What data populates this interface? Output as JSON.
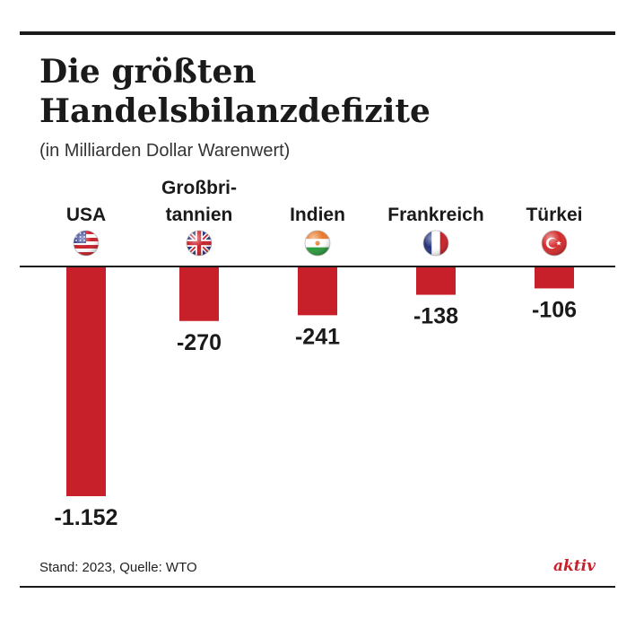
{
  "header": {
    "title": "Die größten Handelsbilanzdefizite",
    "subtitle": "(in Milliarden Dollar Warenwert)"
  },
  "footer": {
    "source": "Stand: 2023, Quelle: WTO",
    "brand": "aktiv"
  },
  "colors": {
    "bar": "#c8202a",
    "text": "#1a1a1a",
    "brand": "#c8202a"
  },
  "chart_data": {
    "type": "bar",
    "title": "Die größten Handelsbilanzdefizite",
    "subtitle": "(in Milliarden Dollar Warenwert)",
    "categories": [
      "USA",
      "Großbritannien",
      "Indien",
      "Frankreich",
      "Türkei"
    ],
    "category_labels": [
      [
        "USA"
      ],
      [
        "Großbri-",
        "tannien"
      ],
      [
        "Indien"
      ],
      [
        "Frankreich"
      ],
      [
        "Türkei"
      ]
    ],
    "flag_icons": [
      "flag-usa-icon",
      "flag-uk-icon",
      "flag-niger-icon",
      "flag-france-icon",
      "flag-turkey-icon"
    ],
    "values": [
      -1152,
      -270,
      -241,
      -138,
      -106
    ],
    "value_labels": [
      "-1.152",
      "-270",
      "-241",
      "-138",
      "-106"
    ],
    "ylim": [
      -1152,
      0
    ],
    "grid": false,
    "legend": "none"
  }
}
